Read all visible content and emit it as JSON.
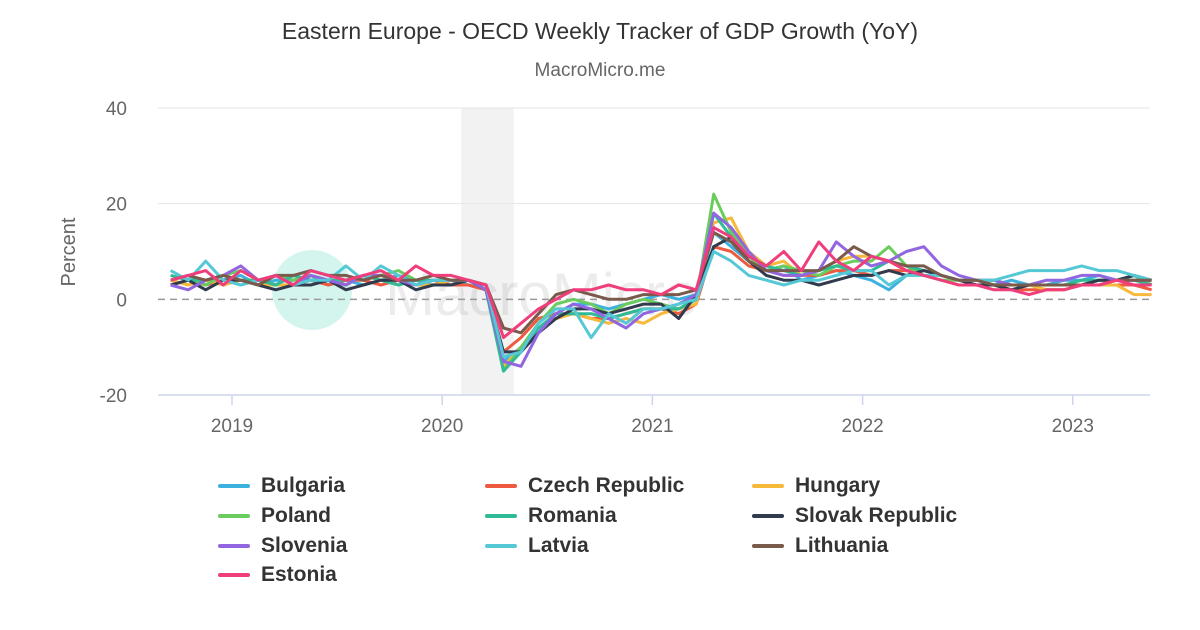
{
  "chart_data": {
    "type": "line",
    "title": "Eastern Europe - OECD Weekly Tracker of GDP Growth (YoY)",
    "subtitle": "MacroMicro.me",
    "watermark": "MacroMicro",
    "ylabel": "Percent",
    "xlabel": "",
    "ylim": [
      -20,
      40
    ],
    "yticks": [
      "40",
      "20",
      "0",
      "-20"
    ],
    "ytick_values": [
      40,
      20,
      0,
      -20
    ],
    "xticks": [
      "2019",
      "2020",
      "2021",
      "2022",
      "2023"
    ],
    "xlim": [
      "2018-09",
      "2023-05"
    ],
    "grid": true,
    "zero_line": "dashed",
    "shaded_period": [
      "2020-02",
      "2020-05"
    ],
    "legend_position": "bottom",
    "x": [
      "2018-09",
      "2018-10",
      "2018-11",
      "2018-12",
      "2019-01",
      "2019-02",
      "2019-03",
      "2019-04",
      "2019-05",
      "2019-06",
      "2019-07",
      "2019-08",
      "2019-09",
      "2019-10",
      "2019-11",
      "2019-12",
      "2020-01",
      "2020-02",
      "2020-03",
      "2020-04",
      "2020-05",
      "2020-06",
      "2020-07",
      "2020-08",
      "2020-09",
      "2020-10",
      "2020-11",
      "2020-12",
      "2021-01",
      "2021-02",
      "2021-03",
      "2021-04",
      "2021-05",
      "2021-06",
      "2021-07",
      "2021-08",
      "2021-09",
      "2021-10",
      "2021-11",
      "2021-12",
      "2022-01",
      "2022-02",
      "2022-03",
      "2022-04",
      "2022-05",
      "2022-06",
      "2022-07",
      "2022-08",
      "2022-09",
      "2022-10",
      "2022-11",
      "2022-12",
      "2023-01",
      "2023-02",
      "2023-03",
      "2023-04",
      "2023-05"
    ],
    "series": [
      {
        "name": "Bulgaria",
        "color": "#3cb1e0",
        "values": [
          4,
          5,
          3,
          4,
          5,
          3,
          4,
          4,
          5,
          3,
          4,
          3,
          4,
          5,
          4,
          3,
          4,
          3,
          2,
          -13,
          -10,
          -6,
          -3,
          -1,
          -1,
          -2,
          -1,
          0,
          1,
          0,
          1,
          14,
          11,
          8,
          6,
          7,
          4,
          5,
          6,
          5,
          4,
          2,
          5,
          6,
          5,
          4,
          4,
          3,
          4,
          3,
          3,
          4,
          4,
          5,
          4,
          5,
          3
        ]
      },
      {
        "name": "Czech Republic",
        "color": "#ee5a3f",
        "values": [
          3,
          4,
          3,
          4,
          4,
          4,
          3,
          5,
          4,
          3,
          4,
          4,
          3,
          4,
          3,
          4,
          3,
          3,
          2,
          -11,
          -8,
          -4,
          -3,
          -3,
          -4,
          -4,
          -3,
          -2,
          -2,
          -3,
          -1,
          11,
          10,
          7,
          6,
          5,
          5,
          5,
          6,
          6,
          5,
          6,
          6,
          6,
          5,
          4,
          3,
          3,
          2,
          2,
          2,
          2,
          3,
          3,
          3,
          3,
          2
        ]
      },
      {
        "name": "Hungary",
        "color": "#f6b93b",
        "values": [
          4,
          3,
          4,
          3,
          4,
          3,
          3,
          3,
          4,
          4,
          3,
          5,
          4,
          4,
          3,
          3,
          4,
          4,
          3,
          -14,
          -10,
          -6,
          -4,
          -3,
          -4,
          -5,
          -4,
          -5,
          -3,
          -2,
          -1,
          16,
          17,
          10,
          7,
          8,
          5,
          6,
          8,
          9,
          9,
          8,
          6,
          5,
          4,
          3,
          3,
          3,
          2,
          3,
          2,
          2,
          3,
          3,
          3,
          1,
          1
        ]
      },
      {
        "name": "Poland",
        "color": "#6acc5c",
        "values": [
          5,
          4,
          3,
          5,
          6,
          4,
          5,
          4,
          5,
          4,
          3,
          5,
          5,
          6,
          4,
          4,
          4,
          4,
          2,
          -15,
          -10,
          -5,
          -1,
          0,
          -1,
          -3,
          -1,
          0,
          -1,
          -2,
          0,
          22,
          14,
          9,
          6,
          7,
          6,
          5,
          7,
          8,
          8,
          11,
          7,
          5,
          4,
          4,
          4,
          3,
          3,
          3,
          3,
          3,
          3,
          4,
          4,
          5,
          3
        ]
      },
      {
        "name": "Romania",
        "color": "#2fbb96",
        "values": [
          5,
          4,
          4,
          5,
          4,
          4,
          3,
          5,
          4,
          4,
          4,
          5,
          4,
          3,
          4,
          4,
          4,
          4,
          2,
          -15,
          -11,
          -6,
          -3,
          -3,
          -3,
          -4,
          -3,
          -2,
          -2,
          -2,
          0,
          18,
          13,
          9,
          7,
          6,
          5,
          6,
          7,
          6,
          6,
          8,
          7,
          6,
          5,
          4,
          4,
          4,
          3,
          3,
          3,
          3,
          4,
          4,
          4,
          4,
          3
        ]
      },
      {
        "name": "Slovak Republic",
        "color": "#323a4e",
        "values": [
          3,
          4,
          2,
          4,
          4,
          3,
          2,
          3,
          3,
          4,
          2,
          3,
          4,
          4,
          2,
          3,
          3,
          4,
          2,
          -11,
          -11,
          -7,
          -4,
          -2,
          -2,
          -3,
          -2,
          -1,
          -1,
          -4,
          1,
          11,
          13,
          8,
          5,
          4,
          4,
          3,
          4,
          5,
          5,
          6,
          5,
          6,
          5,
          4,
          3,
          3,
          2,
          3,
          3,
          3,
          3,
          4,
          4,
          5,
          4
        ]
      },
      {
        "name": "Slovenia",
        "color": "#9166e0",
        "values": [
          3,
          2,
          4,
          5,
          7,
          4,
          5,
          3,
          5,
          4,
          3,
          5,
          5,
          4,
          3,
          4,
          4,
          4,
          2,
          -13,
          -14,
          -7,
          -3,
          -1,
          -2,
          -4,
          -6,
          -3,
          -2,
          -1,
          1,
          18,
          15,
          10,
          6,
          5,
          5,
          6,
          12,
          9,
          7,
          8,
          10,
          11,
          7,
          5,
          4,
          4,
          3,
          3,
          4,
          4,
          5,
          5,
          4,
          4,
          4
        ]
      },
      {
        "name": "Latvia",
        "color": "#55c8d5",
        "values": [
          6,
          4,
          8,
          4,
          3,
          4,
          5,
          3,
          4,
          4,
          7,
          4,
          7,
          5,
          3,
          4,
          4,
          4,
          3,
          -12,
          -11,
          -5,
          -2,
          -2,
          -8,
          -3,
          -5,
          -2,
          -2,
          -1,
          0,
          10,
          8,
          5,
          4,
          3,
          4,
          4,
          5,
          6,
          6,
          3,
          5,
          5,
          5,
          4,
          4,
          4,
          5,
          6,
          6,
          6,
          7,
          6,
          6,
          5,
          4
        ]
      },
      {
        "name": "Lithuania",
        "color": "#7a5a4a",
        "values": [
          4,
          5,
          4,
          5,
          4,
          3,
          5,
          5,
          6,
          5,
          5,
          4,
          5,
          4,
          4,
          5,
          4,
          4,
          3,
          -6,
          -7,
          -3,
          1,
          2,
          1,
          0,
          0,
          1,
          1,
          1,
          2,
          14,
          12,
          8,
          6,
          6,
          6,
          6,
          8,
          11,
          9,
          8,
          7,
          7,
          5,
          4,
          4,
          3,
          3,
          3,
          3,
          3,
          3,
          3,
          4,
          4,
          4
        ]
      },
      {
        "name": "Estonia",
        "color": "#f03e7c",
        "values": [
          4,
          5,
          6,
          3,
          6,
          4,
          5,
          3,
          6,
          5,
          4,
          5,
          6,
          4,
          7,
          5,
          5,
          4,
          3,
          -8,
          -5,
          -2,
          0,
          2,
          2,
          3,
          2,
          2,
          1,
          3,
          2,
          15,
          13,
          9,
          7,
          10,
          6,
          12,
          8,
          6,
          9,
          8,
          6,
          5,
          4,
          3,
          3,
          2,
          2,
          1,
          2,
          2,
          3,
          3,
          4,
          3,
          3
        ]
      }
    ]
  }
}
